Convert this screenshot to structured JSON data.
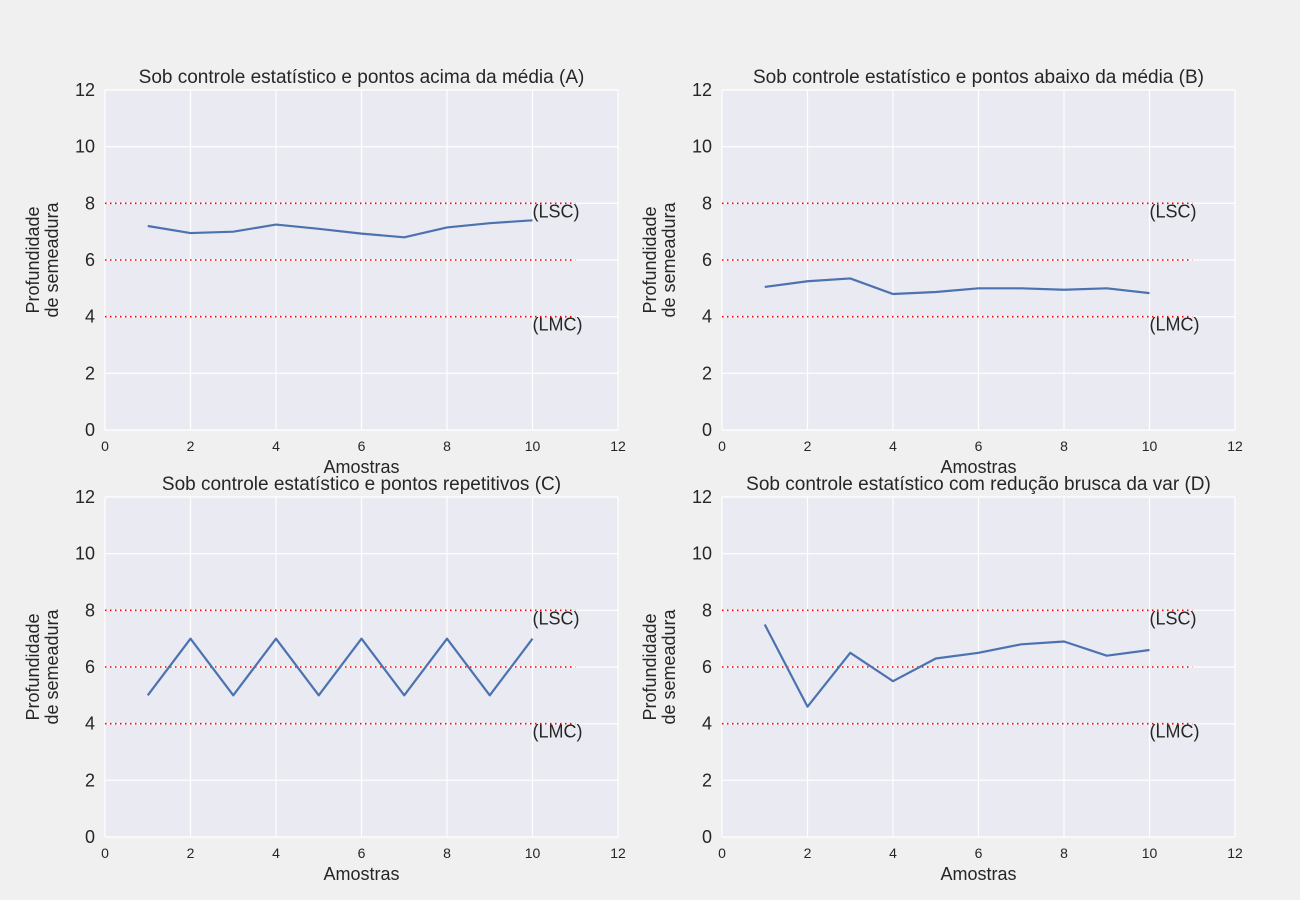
{
  "chart_data": [
    {
      "type": "line",
      "title": "Sob controle estatístico e pontos acima da média (A)",
      "xlabel": "Amostras",
      "ylabel": [
        "Profundidade",
        "de semeadura"
      ],
      "xlim": [
        0,
        12
      ],
      "ylim": [
        0,
        12
      ],
      "xticks": [
        0,
        2,
        4,
        6,
        8,
        10,
        12
      ],
      "yticks": [
        0,
        2,
        4,
        6,
        8,
        10,
        12
      ],
      "x": [
        1,
        2,
        3,
        4,
        5,
        6,
        7,
        8,
        9,
        10
      ],
      "values": [
        7.2,
        6.95,
        7.0,
        7.25,
        7.1,
        6.93,
        6.8,
        7.15,
        7.3,
        7.4
      ],
      "ref_lines": [
        {
          "y": 8,
          "x_end": 11,
          "label": "(LSC)"
        },
        {
          "y": 6,
          "x_end": 11,
          "label": ""
        },
        {
          "y": 4,
          "x_end": 11,
          "label": "(LMC)"
        }
      ]
    },
    {
      "type": "line",
      "title": "Sob controle estatístico e pontos abaixo da média  (B)",
      "xlabel": "Amostras",
      "ylabel": [
        "Profundidade",
        "de semeadura"
      ],
      "xlim": [
        0,
        12
      ],
      "ylim": [
        0,
        12
      ],
      "xticks": [
        0,
        2,
        4,
        6,
        8,
        10,
        12
      ],
      "yticks": [
        0,
        2,
        4,
        6,
        8,
        10,
        12
      ],
      "x": [
        1,
        2,
        3,
        4,
        5,
        6,
        7,
        8,
        9,
        10
      ],
      "values": [
        5.05,
        5.25,
        5.35,
        4.8,
        4.87,
        5.0,
        5.0,
        4.95,
        5.0,
        4.83
      ],
      "ref_lines": [
        {
          "y": 8,
          "x_end": 11,
          "label": "(LSC)"
        },
        {
          "y": 6,
          "x_end": 11,
          "label": ""
        },
        {
          "y": 4,
          "x_end": 11,
          "label": "(LMC)"
        }
      ]
    },
    {
      "type": "line",
      "title": "Sob controle estatístico e pontos repetitivos (C)",
      "xlabel": "Amostras",
      "ylabel": [
        "Profundidade",
        "de semeadura"
      ],
      "xlim": [
        0,
        12
      ],
      "ylim": [
        0,
        12
      ],
      "xticks": [
        0,
        2,
        4,
        6,
        8,
        10,
        12
      ],
      "yticks": [
        0,
        2,
        4,
        6,
        8,
        10,
        12
      ],
      "x": [
        1,
        2,
        3,
        4,
        5,
        6,
        7,
        8,
        9,
        10
      ],
      "values": [
        5,
        7,
        5,
        7,
        5,
        7,
        5,
        7,
        5,
        7
      ],
      "ref_lines": [
        {
          "y": 8,
          "x_end": 11,
          "label": "(LSC)"
        },
        {
          "y": 6,
          "x_end": 11,
          "label": ""
        },
        {
          "y": 4,
          "x_end": 11,
          "label": "(LMC)"
        }
      ]
    },
    {
      "type": "line",
      "title": "Sob controle estatístico com redução brusca da var (D)",
      "xlabel": "Amostras",
      "ylabel": [
        "Profundidade",
        "de semeadura"
      ],
      "xlim": [
        0,
        12
      ],
      "ylim": [
        0,
        12
      ],
      "xticks": [
        0,
        2,
        4,
        6,
        8,
        10,
        12
      ],
      "yticks": [
        0,
        2,
        4,
        6,
        8,
        10,
        12
      ],
      "x": [
        1,
        2,
        3,
        4,
        5,
        6,
        7,
        8,
        9,
        10
      ],
      "values": [
        7.5,
        4.6,
        6.5,
        5.5,
        6.3,
        6.5,
        6.8,
        6.9,
        6.4,
        6.6
      ],
      "ref_lines": [
        {
          "y": 8,
          "x_end": 11,
          "label": "(LSC)"
        },
        {
          "y": 6,
          "x_end": 11,
          "label": ""
        },
        {
          "y": 4,
          "x_end": 11,
          "label": "(LMC)"
        }
      ]
    }
  ],
  "colors": {
    "series": "#4c72b0",
    "ref_line": "#ff0000",
    "plot_bg": "#eaeaf2",
    "grid": "#ffffff"
  }
}
